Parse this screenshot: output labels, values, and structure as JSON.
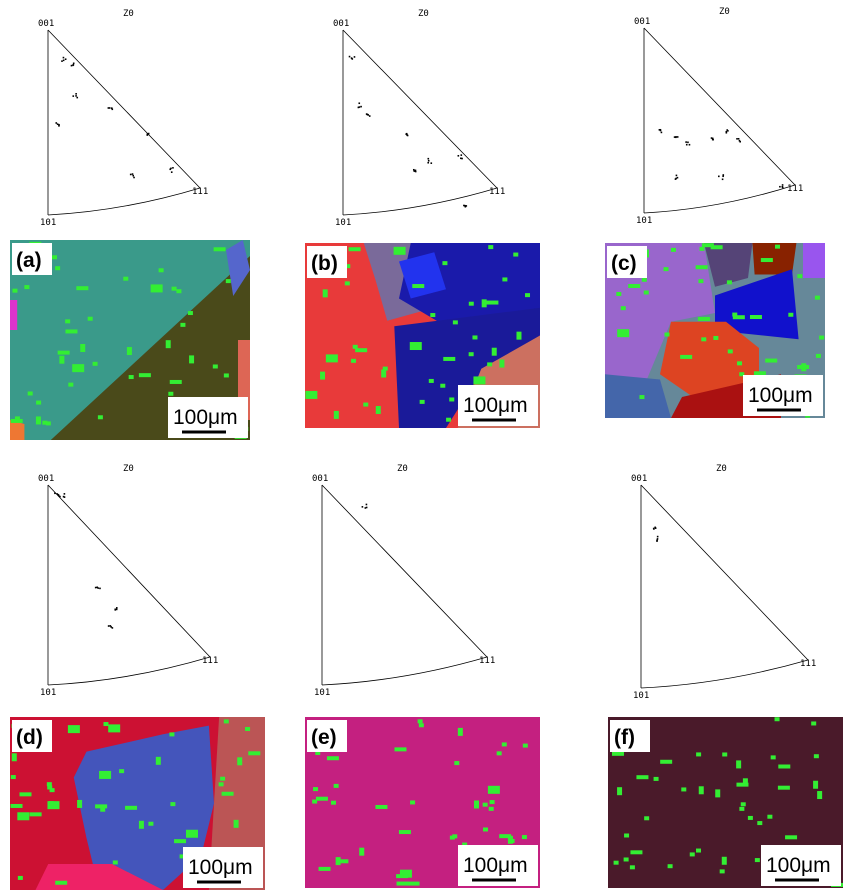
{
  "panels": [
    {
      "label": "(a)",
      "scale_bar": "100μm",
      "pole_figure": {
        "title": "Z0",
        "poles": [
          "001",
          "101",
          "111"
        ]
      }
    },
    {
      "label": "(b)",
      "scale_bar": "100μm",
      "pole_figure": {
        "title": "Z0",
        "poles": [
          "001",
          "101",
          "111"
        ]
      }
    },
    {
      "label": "(c)",
      "scale_bar": "100μm",
      "pole_figure": {
        "title": "Z0",
        "poles": [
          "001",
          "101",
          "111"
        ]
      }
    },
    {
      "label": "(d)",
      "scale_bar": "100μm",
      "pole_figure": {
        "title": "Z0",
        "poles": [
          "001",
          "101",
          "111"
        ]
      }
    },
    {
      "label": "(e)",
      "scale_bar": "100μm",
      "pole_figure": {
        "title": "Z0",
        "poles": [
          "001",
          "101",
          "111"
        ]
      }
    },
    {
      "label": "(f)",
      "scale_bar": "100μm",
      "pole_figure": {
        "title": "Z0",
        "poles": [
          "001",
          "101",
          "111"
        ]
      }
    }
  ]
}
